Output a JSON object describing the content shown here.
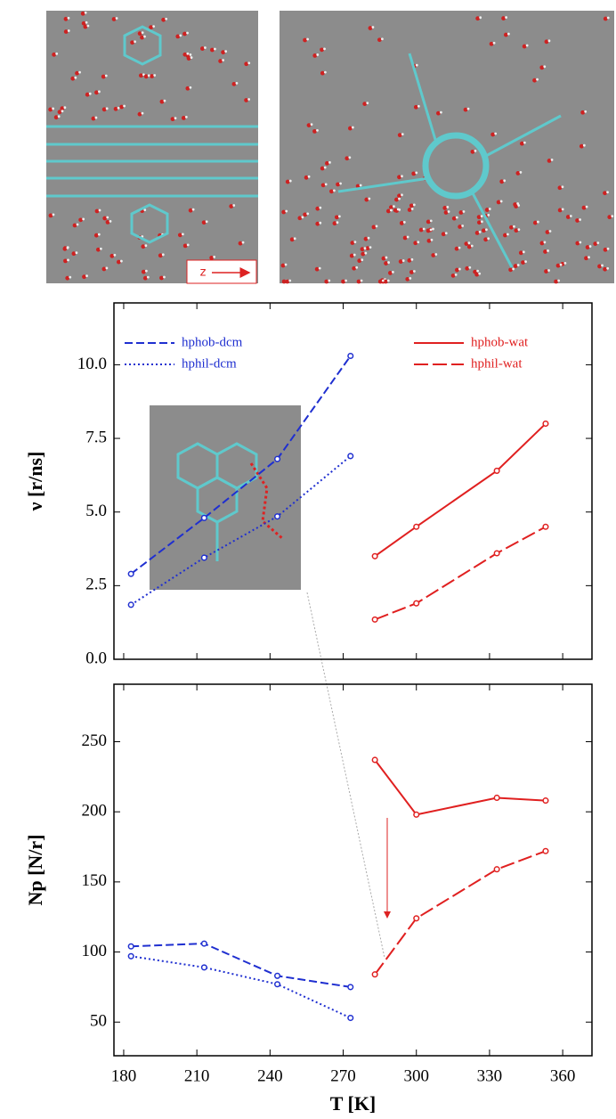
{
  "images": {
    "axis_label": "z"
  },
  "chart_data": [
    {
      "type": "line",
      "ylabel": "ν [r/ns]",
      "xlim": [
        176,
        372
      ],
      "ylim": [
        0,
        12.1
      ],
      "xticks": [
        180,
        210,
        240,
        270,
        300,
        330,
        360
      ],
      "yticks": [
        {
          "value": 0,
          "label": "0.0"
        },
        {
          "value": 2.5,
          "label": "2.5"
        },
        {
          "value": 5,
          "label": "5.0"
        },
        {
          "value": 7.5,
          "label": "7.5"
        },
        {
          "value": 10,
          "label": "10.0"
        }
      ],
      "legend": true,
      "series": [
        {
          "name": "hphob-dcm",
          "color": "#1f2fd0",
          "style": "dashed",
          "x": [
            183,
            213,
            243,
            273
          ],
          "values": [
            2.9,
            4.8,
            6.8,
            10.3
          ]
        },
        {
          "name": "hphil-dcm",
          "color": "#1f2fd0",
          "style": "dotted",
          "x": [
            183,
            213,
            243,
            273
          ],
          "values": [
            1.85,
            3.45,
            4.85,
            6.9
          ]
        },
        {
          "name": "hphob-wat",
          "color": "#e02020",
          "style": "solid",
          "x": [
            283,
            300,
            333,
            353
          ],
          "values": [
            3.5,
            4.5,
            6.4,
            8.0
          ]
        },
        {
          "name": "hphil-wat",
          "color": "#e02020",
          "style": "longdash",
          "x": [
            283,
            300,
            333,
            353
          ],
          "values": [
            1.35,
            1.9,
            3.6,
            4.5
          ]
        }
      ]
    },
    {
      "type": "line",
      "ylabel": "Np [N/r]",
      "xlabel": "T [K]",
      "xlim": [
        176,
        372
      ],
      "ylim": [
        26,
        291
      ],
      "xticks": [
        180,
        210,
        240,
        270,
        300,
        330,
        360
      ],
      "yticks": [
        50,
        100,
        150,
        200,
        250
      ],
      "legend": false,
      "series": [
        {
          "name": "hphob-dcm",
          "color": "#1f2fd0",
          "style": "dashed",
          "x": [
            183,
            213,
            243,
            273
          ],
          "values": [
            104,
            106,
            83,
            75
          ]
        },
        {
          "name": "hphil-dcm",
          "color": "#1f2fd0",
          "style": "dotted",
          "x": [
            183,
            213,
            243,
            273
          ],
          "values": [
            97,
            89,
            77,
            53
          ]
        },
        {
          "name": "hphob-wat",
          "color": "#e02020",
          "style": "solid",
          "x": [
            283,
            300,
            333,
            353
          ],
          "values": [
            237,
            198,
            210,
            208
          ]
        },
        {
          "name": "hphil-wat",
          "color": "#e02020",
          "style": "longdash",
          "x": [
            283,
            300,
            333,
            353
          ],
          "values": [
            84,
            124,
            159,
            172
          ]
        }
      ]
    }
  ]
}
